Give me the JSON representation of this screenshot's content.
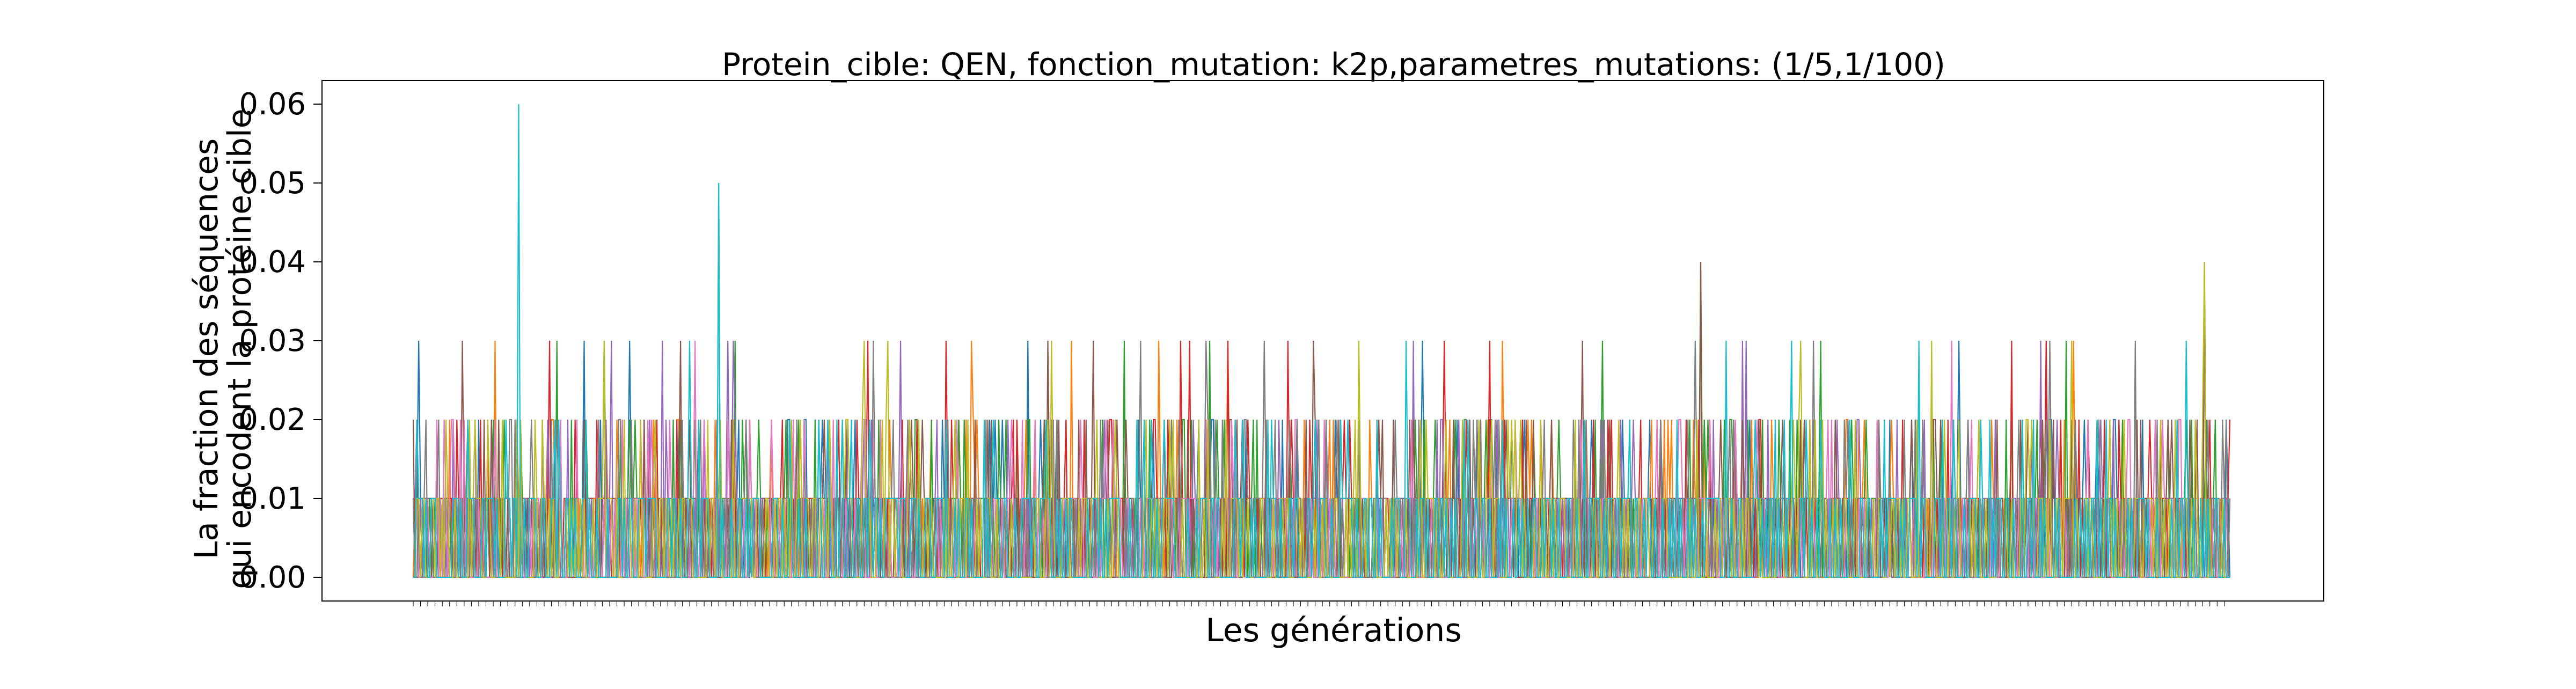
{
  "chart_data": {
    "type": "line",
    "title": "Protein_cible: QEN, fonction_mutation: k2p,parametres_mutations: (1/5,1/100)",
    "xlabel": "Les générations",
    "ylabel_line1": "La fraction des séquences",
    "ylabel_line2": "qui encodent la protéine cible",
    "ylim": [
      -0.003,
      0.063
    ],
    "yticks": [
      "0.00",
      "0.01",
      "0.02",
      "0.03",
      "0.04",
      "0.05",
      "0.06"
    ],
    "grid": false,
    "legend": false,
    "x_start": 0,
    "x_end": 999,
    "series_colors": [
      "#1f77b4",
      "#ff7f0e",
      "#2ca02c",
      "#d62728",
      "#9467bd",
      "#8c564b",
      "#e377c2",
      "#7f7f7f",
      "#bcbd22",
      "#17becf"
    ],
    "peaks": [
      {
        "x": 58,
        "y": 0.06
      },
      {
        "x": 168,
        "y": 0.05
      },
      {
        "x": 708,
        "y": 0.04
      },
      {
        "x": 985,
        "y": 0.04
      },
      {
        "x": 45,
        "y": 0.03
      },
      {
        "x": 173,
        "y": 0.03
      },
      {
        "x": 400,
        "y": 0.03
      },
      {
        "x": 850,
        "y": 0.03
      }
    ]
  }
}
